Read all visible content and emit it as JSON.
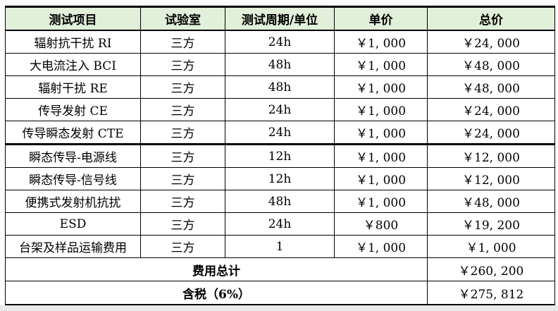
{
  "table": {
    "columns": [
      "测试项目",
      "试验室",
      "测试周期/单位",
      "单价",
      "总价"
    ],
    "rows": [
      [
        "辐射抗干扰 RI",
        "三方",
        "24h",
        "￥1, 000",
        "￥24, 000"
      ],
      [
        "大电流注入 BCI",
        "三方",
        "48h",
        "￥1, 000",
        "￥48, 000"
      ],
      [
        "辐射干扰 RE",
        "三方",
        "48h",
        "￥1, 000",
        "￥48, 000"
      ],
      [
        "传导发射 CE",
        "三方",
        "24h",
        "￥1, 000",
        "￥24, 000"
      ],
      [
        "传导瞬态发射 CTE",
        "三方",
        "24h",
        "￥1, 000",
        "￥24, 000"
      ],
      [
        "瞬态传导-电源线",
        "三方",
        "12h",
        "￥1, 000",
        "￥12, 000"
      ],
      [
        "瞬态传导-信号线",
        "三方",
        "12h",
        "￥1, 000",
        "￥12, 000"
      ],
      [
        "便携式发射机抗扰",
        "三方",
        "48h",
        "￥1, 000",
        "￥48, 000"
      ],
      [
        "ESD",
        "三方",
        "24h",
        "￥800",
        "￥19, 200"
      ],
      [
        "台架及样品运输费用",
        "三方",
        "1",
        "￥1, 000",
        "￥1, 000"
      ]
    ],
    "thick_border_after_rows": [
      4
    ],
    "footer": [
      {
        "label": "费用总计",
        "value": "￥260, 200"
      },
      {
        "label": "含税（6%）",
        "value": "￥275, 812"
      }
    ],
    "colors": {
      "header_bg": "#e2efd9",
      "border": "#000000",
      "bottom_strip": "#e9e9eb"
    }
  }
}
